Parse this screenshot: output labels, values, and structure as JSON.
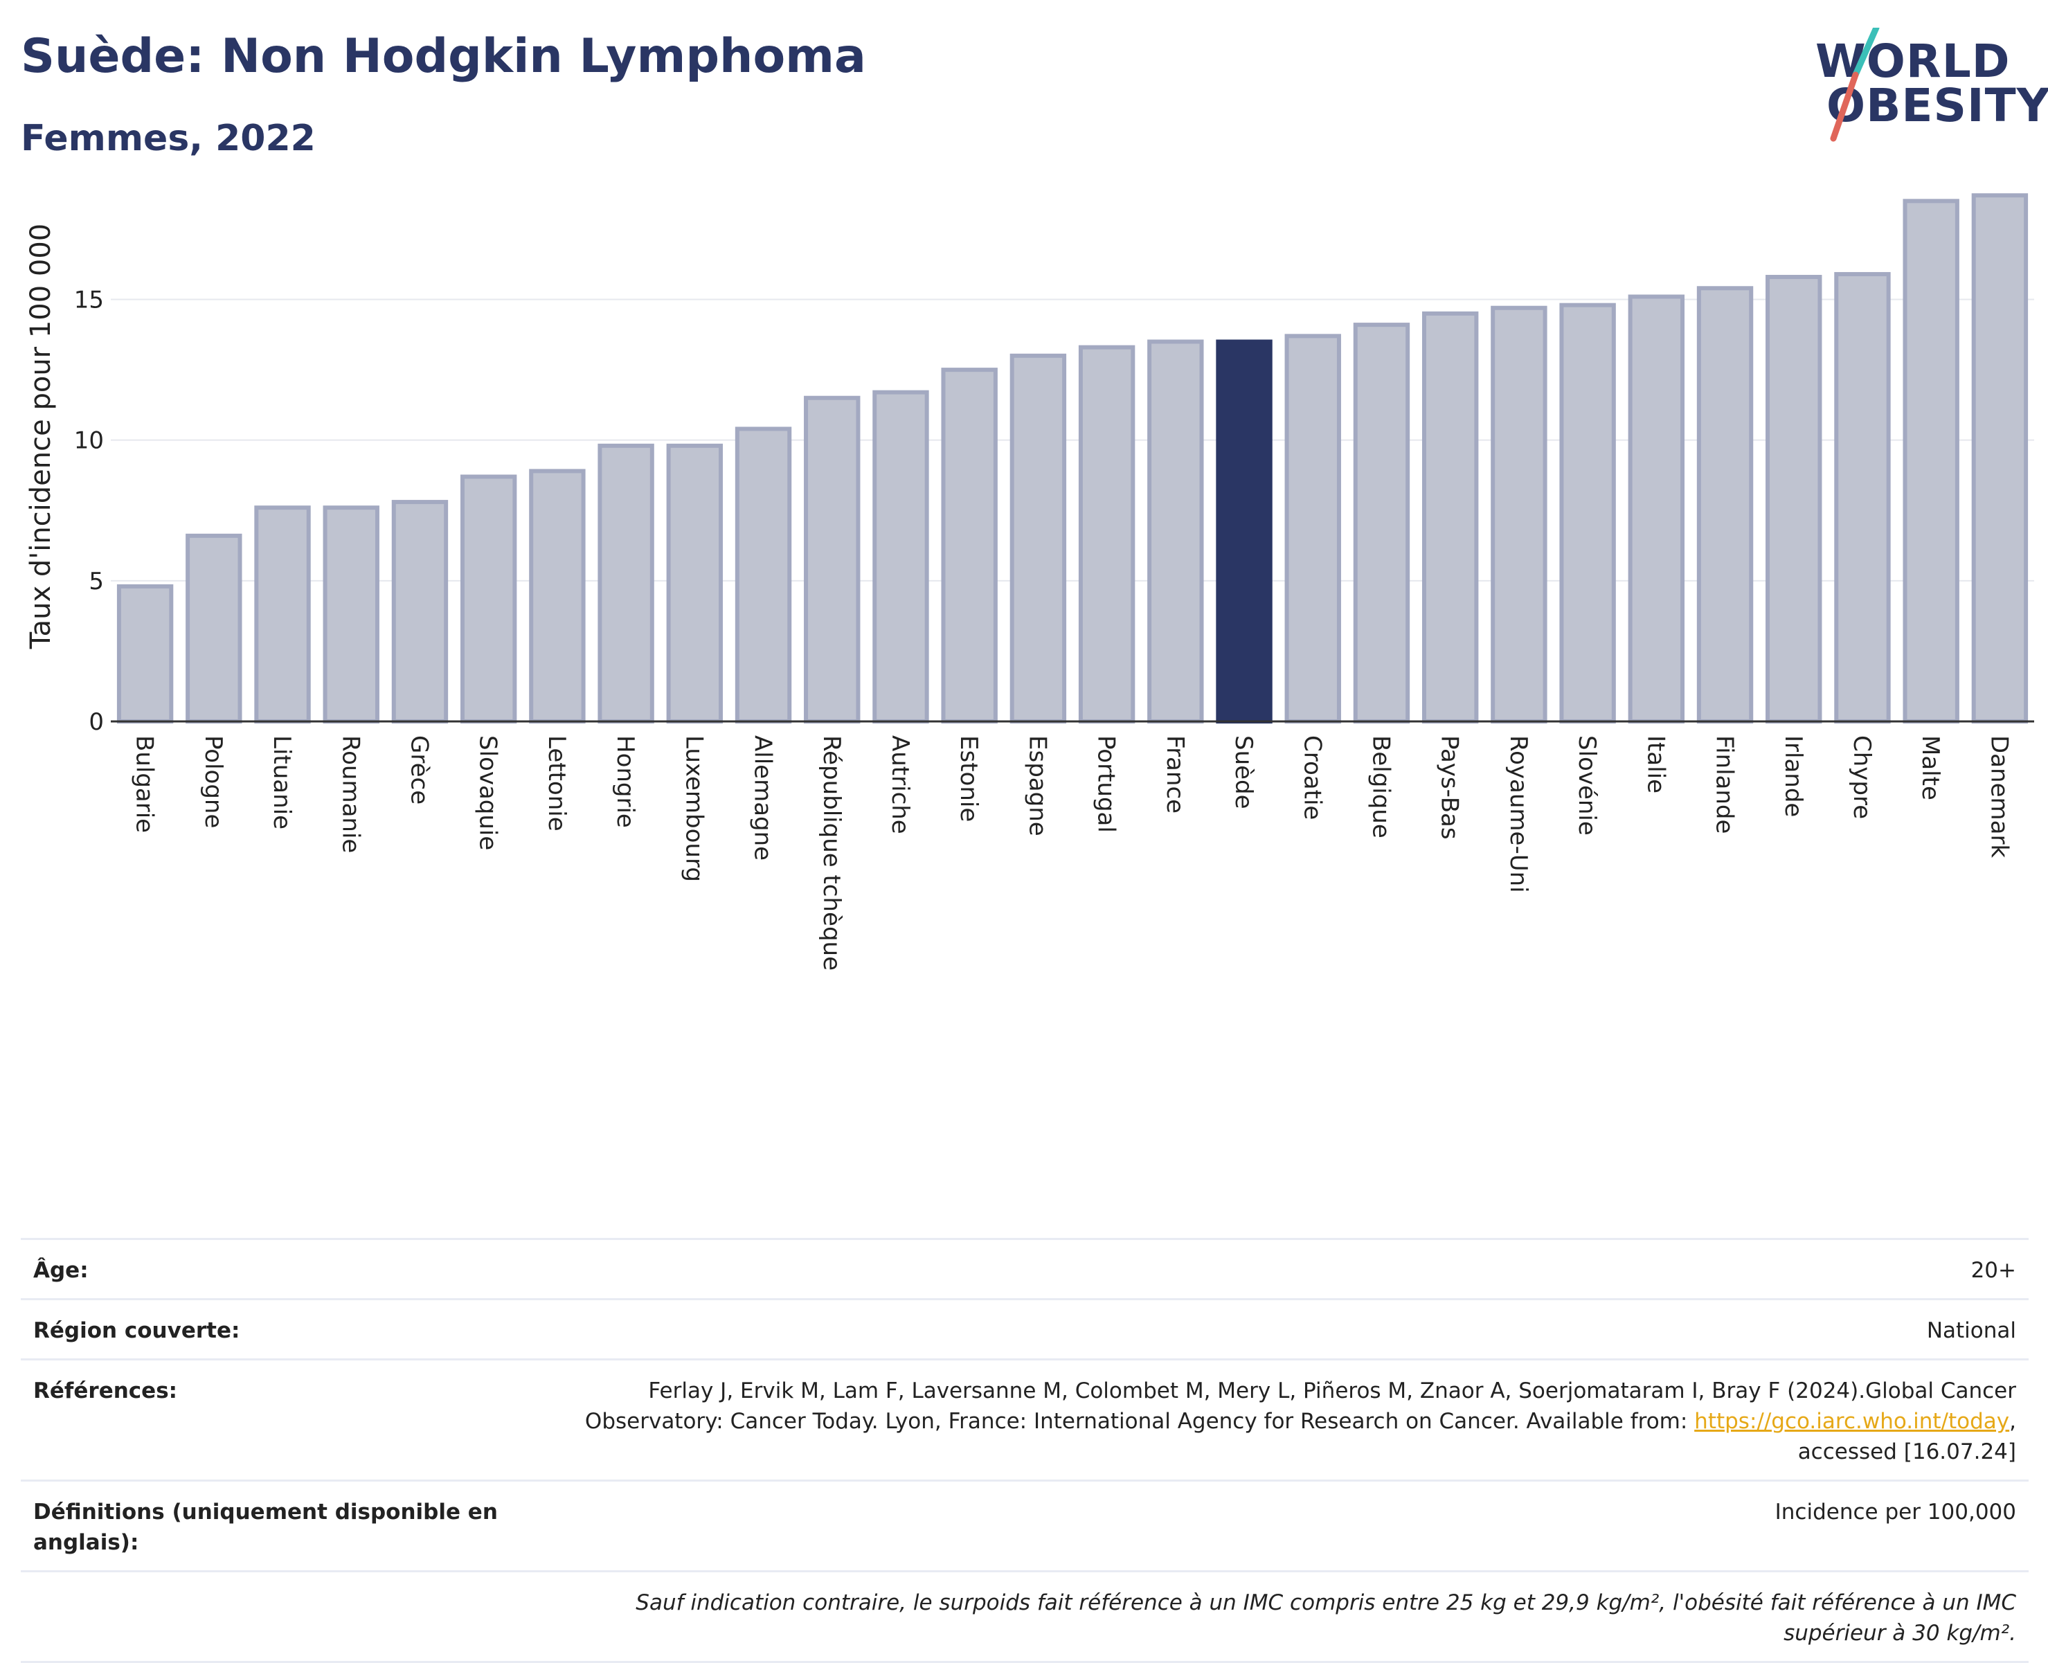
{
  "header": {
    "title": "Suède: Non Hodgkin Lymphoma",
    "subtitle": "Femmes, 2022"
  },
  "logo": {
    "line1": "WORLD",
    "line2": "OBESITY"
  },
  "colors": {
    "highlight": "#2a3664",
    "bar": "#bfc3d0",
    "bar_border": "#a3a9c1",
    "accent_teal": "#3bbfb8",
    "accent_red": "#e0665a",
    "link": "#e6a817"
  },
  "chart_data": {
    "type": "bar",
    "ylabel": "Taux d'incidence pour 100 000",
    "ylim": [
      0,
      19
    ],
    "yticks": [
      0,
      5,
      10,
      15
    ],
    "grid": true,
    "highlight": "Suède",
    "categories": [
      "Bulgarie",
      "Pologne",
      "Lituanie",
      "Roumanie",
      "Grèce",
      "Slovaquie",
      "Lettonie",
      "Hongrie",
      "Luxembourg",
      "Allemagne",
      "République tchèque",
      "Autriche",
      "Estonie",
      "Espagne",
      "Portugal",
      "France",
      "Suède",
      "Croatie",
      "Belgique",
      "Pays-Bas",
      "Royaume-Uni",
      "Slovénie",
      "Italie",
      "Finlande",
      "Irlande",
      "Chypre",
      "Malte",
      "Danemark"
    ],
    "values": [
      4.8,
      6.6,
      7.6,
      7.6,
      7.8,
      8.7,
      8.9,
      9.8,
      9.8,
      10.4,
      11.5,
      11.7,
      12.5,
      13.0,
      13.3,
      13.5,
      13.5,
      13.7,
      14.1,
      14.5,
      14.7,
      14.8,
      15.1,
      15.4,
      15.8,
      15.9,
      18.5,
      18.7
    ]
  },
  "info": {
    "age_label": "Âge:",
    "age_value": "20+",
    "region_label": "Région couverte:",
    "region_value": "National",
    "refs_label": "Références:",
    "refs_text1": "Ferlay J, Ervik M, Lam F, Laversanne M, Colombet M, Mery L, Piñeros M, Znaor A, Soerjomataram I, Bray F (2024).Global Cancer",
    "refs_text2": "Observatory: Cancer Today. Lyon, France: International Agency for Research on Cancer. Available from: ",
    "refs_link": "https://gco.iarc.who.int/today",
    "refs_text3": ",",
    "refs_text4": "accessed [16.07.24]",
    "defs_label": "Définitions (uniquement disponible en anglais):",
    "defs_value": "Incidence per 100,000",
    "note": "Sauf indication contraire, le surpoids fait référence à un IMC compris entre 25 kg et 29,9 kg/m², l'obésité fait référence à un IMC supérieur à 30 kg/m²."
  }
}
